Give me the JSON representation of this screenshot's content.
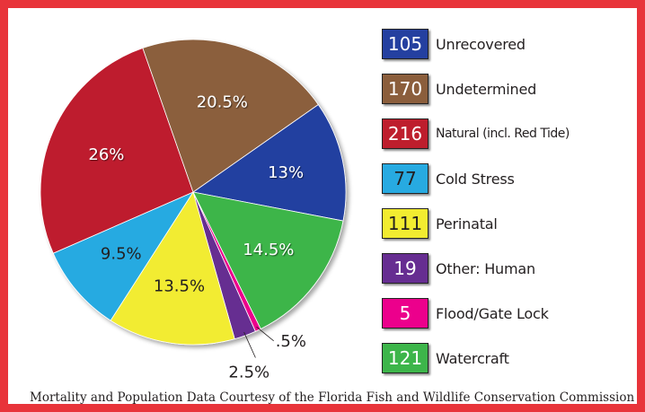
{
  "chart_data": {
    "type": "pie",
    "slices": [
      {
        "label": "Unrecovered",
        "value": 105,
        "percent_label": "13%",
        "color": "#2440a0",
        "text_color": "#ffffff"
      },
      {
        "label": "Watercraft",
        "value": 121,
        "percent_label": "14.5%",
        "color": "#3db54a",
        "text_color": "#ffffff"
      },
      {
        "label": "Flood/Gate Lock",
        "value": 5,
        "percent_label": ".5%",
        "color": "#ec008c",
        "text_color": "#ffffff"
      },
      {
        "label": "Other: Human",
        "value": 19,
        "percent_label": "2.5%",
        "color": "#662d91",
        "text_color": "#ffffff"
      },
      {
        "label": "Perinatal",
        "value": 111,
        "percent_label": "13.5%",
        "color": "#f2ec30",
        "text_color": "#231f20"
      },
      {
        "label": "Cold Stress",
        "value": 77,
        "percent_label": "9.5%",
        "color": "#27aae1",
        "text_color": "#231f20"
      },
      {
        "label": "Natural (incl. Red Tide)",
        "value": 216,
        "percent_label": "26%",
        "color": "#be1e2d",
        "text_color": "#ffffff"
      },
      {
        "label": "Undetermined",
        "value": 170,
        "percent_label": "20.5%",
        "color": "#8b5e3c",
        "text_color": "#ffffff"
      }
    ],
    "legend_order": [
      "Unrecovered",
      "Undetermined",
      "Natural (incl. Red Tide)",
      "Cold Stress",
      "Perinatal",
      "Other: Human",
      "Flood/Gate Lock",
      "Watercraft"
    ],
    "legend_placement": "right"
  },
  "footer_text": "Mortality and Population Data Courtesy of the Florida Fish and Wildlife Conservation Commission",
  "colors": {
    "frame": "#e8343a"
  }
}
